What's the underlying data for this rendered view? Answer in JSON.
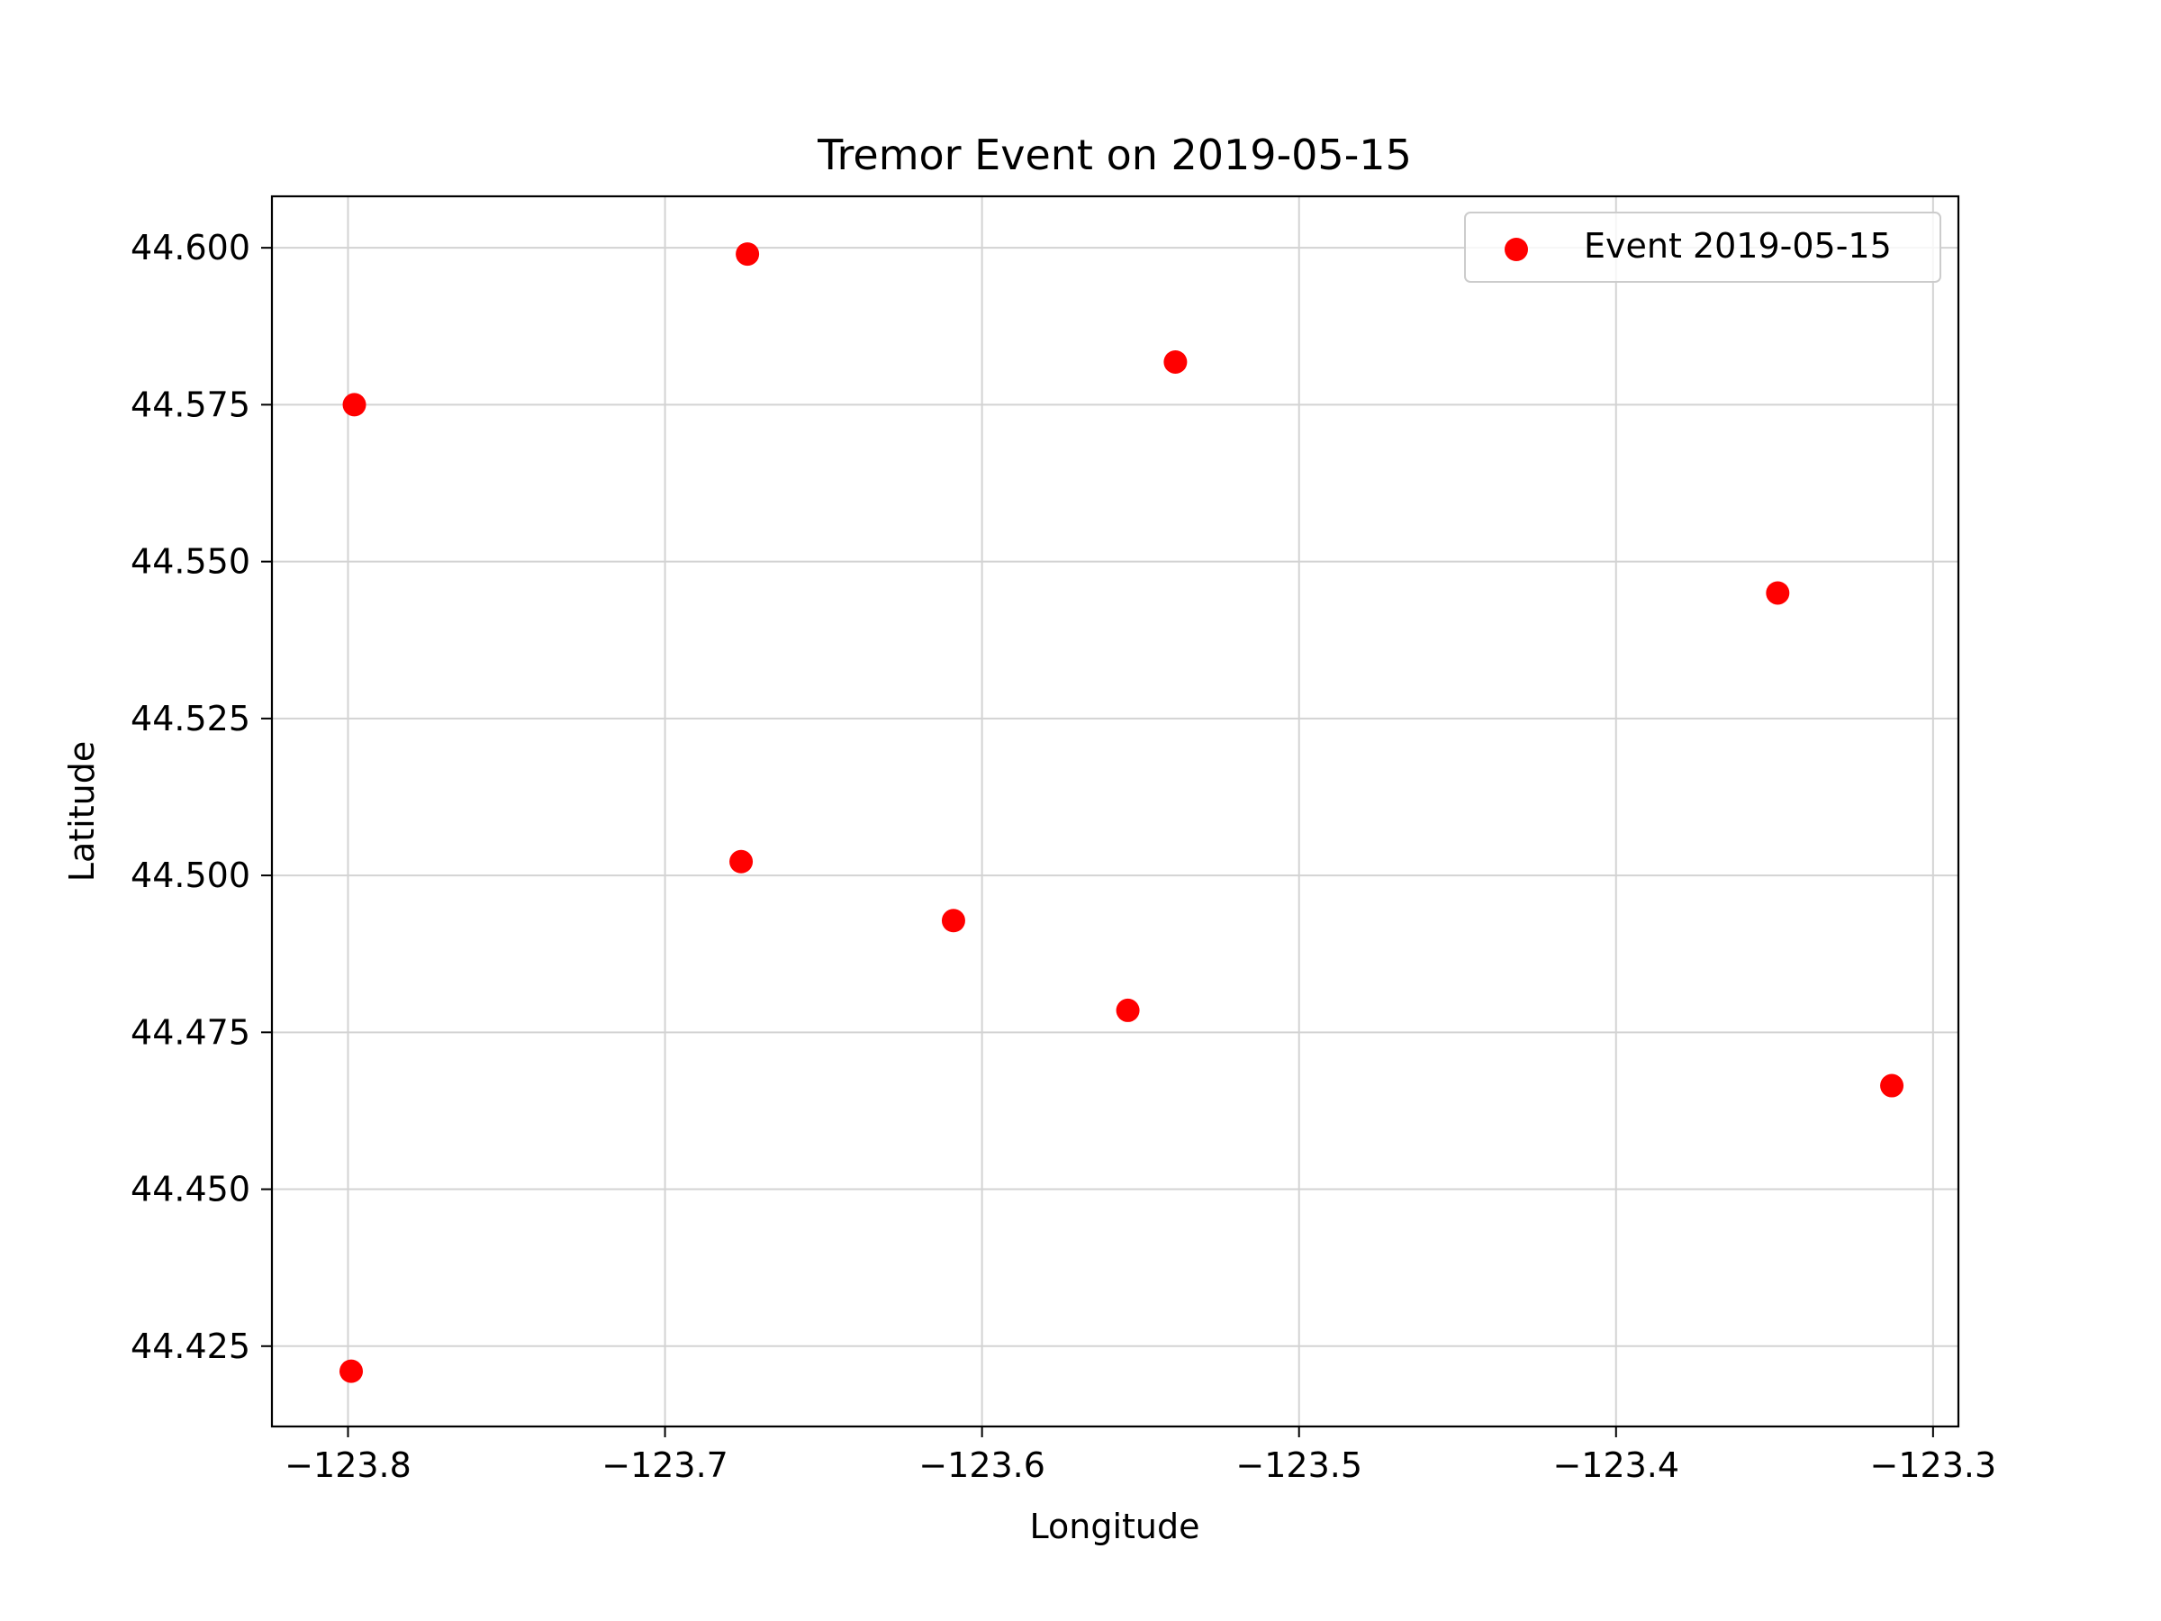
{
  "chart_data": {
    "type": "scatter",
    "title": "Tremor Event on 2019-05-15",
    "xlabel": "Longitude",
    "ylabel": "Latitude",
    "xlim": [
      -123.824,
      -123.292
    ],
    "ylim": [
      44.4122,
      44.6082
    ],
    "grid": true,
    "legend_position": "top-right",
    "x_ticks": [
      -123.8,
      -123.7,
      -123.6,
      -123.5,
      -123.4,
      -123.3
    ],
    "x_tick_labels": [
      "−123.8",
      "−123.7",
      "−123.6",
      "−123.5",
      "−123.4",
      "−123.3"
    ],
    "y_ticks": [
      44.425,
      44.45,
      44.475,
      44.5,
      44.525,
      44.55,
      44.575,
      44.6
    ],
    "y_tick_labels": [
      "44.425",
      "44.450",
      "44.475",
      "44.500",
      "44.525",
      "44.550",
      "44.575",
      "44.600"
    ],
    "series": [
      {
        "name": "Event 2019-05-15",
        "color": "#ff0000",
        "points": [
          {
            "x": -123.798,
            "y": 44.575
          },
          {
            "x": -123.674,
            "y": 44.599
          },
          {
            "x": -123.539,
            "y": 44.5818
          },
          {
            "x": -123.349,
            "y": 44.545
          },
          {
            "x": -123.676,
            "y": 44.5022
          },
          {
            "x": -123.609,
            "y": 44.4928
          },
          {
            "x": -123.554,
            "y": 44.4785
          },
          {
            "x": -123.313,
            "y": 44.4665
          },
          {
            "x": -123.799,
            "y": 44.421
          }
        ]
      }
    ]
  }
}
